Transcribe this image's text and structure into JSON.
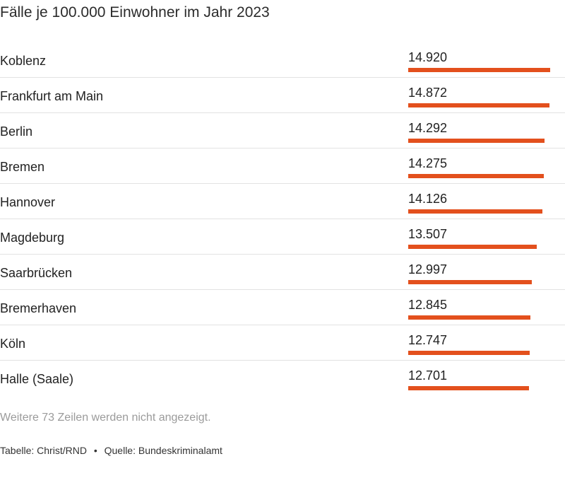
{
  "chart_data": {
    "type": "bar",
    "title": "Fälle je 100.000 Einwohner im Jahr 2023",
    "categories": [
      "Koblenz",
      "Frankfurt am Main",
      "Berlin",
      "Bremen",
      "Hannover",
      "Magdeburg",
      "Saarbrücken",
      "Bremerhaven",
      "Köln",
      "Halle (Saale)"
    ],
    "values": [
      14920,
      14872,
      14292,
      14275,
      14126,
      13507,
      12997,
      12845,
      12747,
      12701
    ],
    "value_labels": [
      "14.920",
      "14.872",
      "14.292",
      "14.275",
      "14.126",
      "13.507",
      "12.997",
      "12.845",
      "12.747",
      "12.701"
    ],
    "xlim": [
      0,
      14920
    ],
    "bar_color": "#e3501d"
  },
  "note": "Weitere 73 Zeilen werden nicht angezeigt.",
  "footer": {
    "table_credit": "Tabelle: Christ/RND",
    "separator": "•",
    "source": "Quelle: Bundeskriminalamt"
  }
}
